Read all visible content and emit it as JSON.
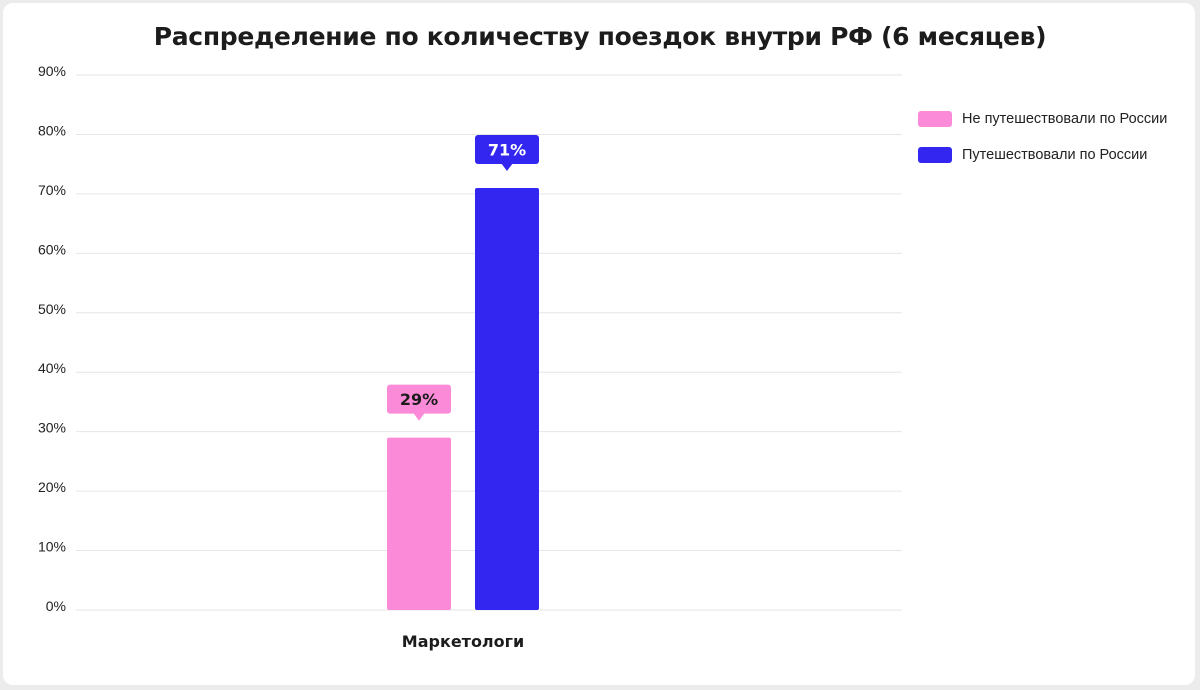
{
  "chart_data": {
    "type": "bar",
    "title": "Распределение по количеству поездок внутри РФ (6 месяцев)",
    "categories": [
      "Маркетологи"
    ],
    "series": [
      {
        "name": "Не путешествовали по России",
        "values": [
          29
        ],
        "label": "29%",
        "color": "#fb8bd9"
      },
      {
        "name": "Путешествовали по России",
        "values": [
          71
        ],
        "label": "71%",
        "color": "#3226f0"
      }
    ],
    "ylim": [
      0,
      90
    ],
    "yticks": [
      0,
      10,
      20,
      30,
      40,
      50,
      60,
      70,
      80,
      90
    ],
    "ytick_labels": [
      "0%",
      "10%",
      "20%",
      "30%",
      "40%",
      "50%",
      "60%",
      "70%",
      "80%",
      "90%"
    ],
    "grid": true,
    "legend_position": "right"
  }
}
